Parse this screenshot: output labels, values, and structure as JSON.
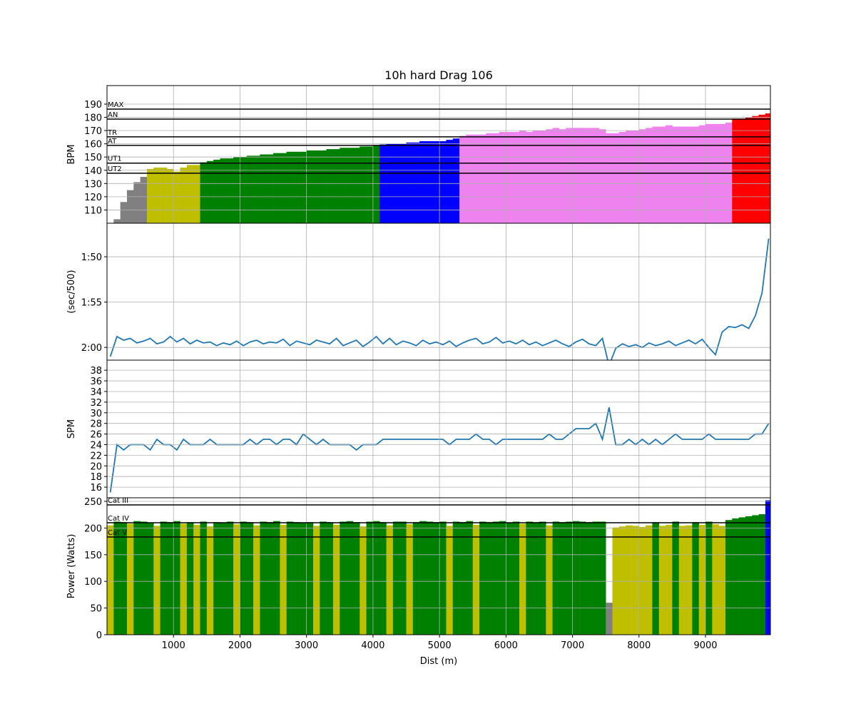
{
  "chart_data": [
    {
      "type": "bar",
      "title": "10h hard Drag 106",
      "ylabel": "BPM",
      "x": [
        50,
        150,
        250,
        350,
        450,
        550,
        650,
        750,
        850,
        950,
        1050,
        1150,
        1250,
        1350,
        1450,
        1550,
        1650,
        1750,
        1850,
        1950,
        2050,
        2150,
        2250,
        2350,
        2450,
        2550,
        2650,
        2750,
        2850,
        2950,
        3050,
        3150,
        3250,
        3350,
        3450,
        3550,
        3650,
        3750,
        3850,
        3950,
        4050,
        4150,
        4250,
        4350,
        4450,
        4550,
        4650,
        4750,
        4850,
        4950,
        5050,
        5150,
        5250,
        5350,
        5450,
        5550,
        5650,
        5750,
        5850,
        5950,
        6050,
        6150,
        6250,
        6350,
        6450,
        6550,
        6650,
        6750,
        6850,
        6950,
        7050,
        7150,
        7250,
        7350,
        7450,
        7550,
        7650,
        7750,
        7850,
        7950,
        8050,
        8150,
        8250,
        8350,
        8450,
        8550,
        8650,
        8750,
        8850,
        8950,
        9050,
        9150,
        9250,
        9350,
        9450,
        9550,
        9650,
        9750,
        9850,
        9950
      ],
      "values": [
        98,
        103,
        116,
        125,
        131,
        135,
        141,
        142,
        142,
        141,
        139,
        142,
        144,
        144,
        146,
        147,
        148,
        149,
        149,
        150,
        150,
        151,
        151,
        152,
        152,
        153,
        153,
        154,
        154,
        154,
        155,
        155,
        155,
        156,
        156,
        157,
        157,
        157,
        158,
        158,
        158.5,
        159.5,
        160,
        160,
        160,
        161,
        161,
        162,
        162,
        162,
        162,
        163,
        164,
        166,
        167,
        167,
        167,
        168,
        168,
        169,
        169,
        169,
        170,
        169,
        170,
        170,
        171,
        172,
        171,
        172,
        172,
        172,
        172,
        172,
        171,
        168,
        168,
        169,
        170,
        170,
        171,
        172,
        173,
        173,
        174,
        173,
        173,
        173,
        173,
        174,
        175,
        175,
        175,
        176,
        179,
        179,
        180,
        181,
        182,
        183
      ],
      "zones": [
        {
          "label": "UT2",
          "value": 137.8
        },
        {
          "label": "UT1",
          "value": 145.4
        },
        {
          "label": "AT",
          "value": 158.8
        },
        {
          "label": "TR",
          "value": 165.3
        },
        {
          "label": "AN",
          "value": 178.7
        },
        {
          "label": "MAX",
          "value": 186.2
        }
      ],
      "zone_colors": [
        "#808080",
        "#bfbf00",
        "#008000",
        "#0000ff",
        "#ee82ee",
        "#ff0000",
        "#ff0000"
      ],
      "ylim": [
        100,
        204
      ],
      "yticks": [
        110,
        120,
        130,
        140,
        150,
        160,
        170,
        180,
        190
      ],
      "xlim": [
        0,
        9976
      ],
      "xticks": [
        1000,
        2000,
        3000,
        4000,
        5000,
        6000,
        7000,
        8000,
        9000
      ],
      "grid": true
    },
    {
      "type": "line",
      "ylabel": "(sec/500)",
      "color": "#1f77b4",
      "x": [
        50,
        150,
        250,
        350,
        450,
        550,
        650,
        750,
        850,
        950,
        1050,
        1150,
        1250,
        1350,
        1450,
        1550,
        1650,
        1750,
        1850,
        1950,
        2050,
        2150,
        2250,
        2350,
        2450,
        2550,
        2650,
        2750,
        2850,
        2950,
        3050,
        3150,
        3250,
        3350,
        3450,
        3550,
        3650,
        3750,
        3850,
        3950,
        4050,
        4150,
        4250,
        4350,
        4450,
        4550,
        4650,
        4750,
        4850,
        4950,
        5050,
        5150,
        5250,
        5350,
        5450,
        5550,
        5650,
        5750,
        5850,
        5950,
        6050,
        6150,
        6250,
        6350,
        6450,
        6550,
        6650,
        6750,
        6850,
        6950,
        7050,
        7150,
        7250,
        7350,
        7450,
        7550,
        7650,
        7750,
        7850,
        7950,
        8050,
        8150,
        8250,
        8350,
        8450,
        8550,
        8650,
        8750,
        8850,
        8950,
        9050,
        9150,
        9250,
        9350,
        9450,
        9550,
        9650,
        9750,
        9850,
        9950
      ],
      "values": [
        121,
        118.8,
        119.2,
        119.0,
        119.5,
        119.3,
        119.0,
        119.6,
        119.4,
        118.8,
        119.4,
        119.0,
        119.6,
        119.2,
        119.5,
        119.4,
        119.8,
        119.5,
        119.7,
        119.3,
        119.8,
        119.4,
        119.2,
        119.6,
        119.4,
        119.5,
        119.1,
        119.8,
        119.3,
        119.5,
        119.7,
        119.2,
        119.4,
        119.6,
        119.0,
        119.8,
        119.5,
        119.2,
        119.9,
        119.4,
        118.8,
        119.6,
        119.0,
        119.7,
        119.3,
        119.5,
        119.8,
        119.2,
        119.6,
        119.4,
        119.7,
        119.3,
        119.9,
        119.5,
        119.2,
        119.0,
        119.6,
        119.4,
        118.9,
        119.5,
        119.3,
        119.6,
        119.2,
        119.7,
        119.4,
        119.8,
        119.5,
        119.2,
        119.6,
        119.9,
        119.4,
        119.1,
        119.6,
        119.8,
        119.0,
        122,
        120.1,
        119.6,
        119.9,
        119.7,
        120.0,
        119.5,
        119.8,
        119.6,
        119.3,
        119.8,
        119.5,
        119.2,
        119.6,
        119.1,
        120.0,
        120.8,
        118.3,
        117.7,
        117.8,
        117.5,
        117.9,
        116.5,
        114,
        108
      ],
      "ylim": [
        121.4,
        106.3
      ],
      "yticks": [
        {
          "value": 110,
          "label": "1:50"
        },
        {
          "value": 115,
          "label": "1:55"
        },
        {
          "value": 120,
          "label": "2:00"
        }
      ],
      "xlim": [
        0,
        9976
      ],
      "xticks": [
        1000,
        2000,
        3000,
        4000,
        5000,
        6000,
        7000,
        8000,
        9000
      ],
      "grid": true
    },
    {
      "type": "line",
      "ylabel": "SPM",
      "color": "#1f77b4",
      "x": [
        50,
        150,
        250,
        350,
        450,
        550,
        650,
        750,
        850,
        950,
        1050,
        1150,
        1250,
        1350,
        1450,
        1550,
        1650,
        1750,
        1850,
        1950,
        2050,
        2150,
        2250,
        2350,
        2450,
        2550,
        2650,
        2750,
        2850,
        2950,
        3050,
        3150,
        3250,
        3350,
        3450,
        3550,
        3650,
        3750,
        3850,
        3950,
        4050,
        4150,
        4250,
        4350,
        4450,
        4550,
        4650,
        4750,
        4850,
        4950,
        5050,
        5150,
        5250,
        5350,
        5450,
        5550,
        5650,
        5750,
        5850,
        5950,
        6050,
        6150,
        6250,
        6350,
        6450,
        6550,
        6650,
        6750,
        6850,
        6950,
        7050,
        7150,
        7250,
        7350,
        7450,
        7550,
        7650,
        7750,
        7850,
        7950,
        8050,
        8150,
        8250,
        8350,
        8450,
        8550,
        8650,
        8750,
        8850,
        8950,
        9050,
        9150,
        9250,
        9350,
        9450,
        9550,
        9650,
        9750,
        9850,
        9950
      ],
      "values": [
        15,
        24,
        23,
        24,
        24,
        24,
        23,
        25,
        24,
        24,
        23,
        25,
        24,
        24,
        24,
        25,
        24,
        24,
        24,
        24,
        24,
        25,
        24,
        25,
        25,
        24,
        25,
        25,
        24,
        26,
        25,
        24,
        25,
        24,
        24,
        24,
        24,
        23,
        24,
        24,
        24,
        25,
        25,
        25,
        25,
        25,
        25,
        25,
        25,
        25,
        25,
        24,
        25,
        25,
        25,
        26,
        25,
        25,
        24,
        25,
        25,
        25,
        25,
        25,
        25,
        25,
        26,
        25,
        25,
        26,
        27,
        27,
        27,
        28,
        25,
        31,
        24,
        24,
        25,
        24,
        25,
        24,
        25,
        24,
        25,
        26,
        25,
        25,
        25,
        25,
        26,
        25,
        25,
        25,
        25,
        25,
        25,
        26,
        26,
        28
      ],
      "ylim": [
        14,
        39.9
      ],
      "yticks": [
        16,
        18,
        20,
        22,
        24,
        26,
        28,
        30,
        32,
        34,
        36,
        38
      ],
      "xlim": [
        0,
        9976
      ],
      "xticks": [
        1000,
        2000,
        3000,
        4000,
        5000,
        6000,
        7000,
        8000,
        9000
      ],
      "grid": true
    },
    {
      "type": "bar",
      "ylabel": "Power (Watts)",
      "xlabel": "Dist (m)",
      "x": [
        50,
        150,
        250,
        350,
        450,
        550,
        650,
        750,
        850,
        950,
        1050,
        1150,
        1250,
        1350,
        1450,
        1550,
        1650,
        1750,
        1850,
        1950,
        2050,
        2150,
        2250,
        2350,
        2450,
        2550,
        2650,
        2750,
        2850,
        2950,
        3050,
        3150,
        3250,
        3350,
        3450,
        3550,
        3650,
        3750,
        3850,
        3950,
        4050,
        4150,
        4250,
        4350,
        4450,
        4550,
        4650,
        4750,
        4850,
        4950,
        5050,
        5150,
        5250,
        5350,
        5450,
        5550,
        5650,
        5750,
        5850,
        5950,
        6050,
        6150,
        6250,
        6350,
        6450,
        6550,
        6650,
        6750,
        6850,
        6950,
        7050,
        7150,
        7250,
        7350,
        7450,
        7550,
        7650,
        7750,
        7850,
        7950,
        8050,
        8150,
        8250,
        8350,
        8450,
        8550,
        8650,
        8750,
        8850,
        8950,
        9050,
        9150,
        9250,
        9350,
        9450,
        9550,
        9650,
        9750,
        9850,
        9950
      ],
      "values": [
        205,
        212,
        211,
        208,
        213,
        212,
        210,
        204,
        212,
        211,
        213,
        208,
        211,
        206,
        212,
        203,
        211,
        210,
        212,
        207,
        212,
        211,
        205,
        212,
        211,
        213,
        206,
        212,
        211,
        210,
        211,
        204,
        212,
        211,
        206,
        212,
        213,
        211,
        203,
        212,
        213,
        211,
        205,
        212,
        212,
        207,
        211,
        213,
        212,
        211,
        212,
        204,
        212,
        211,
        213,
        206,
        212,
        211,
        212,
        213,
        210,
        212,
        208,
        212,
        211,
        212,
        205,
        212,
        211,
        212,
        213,
        212,
        211,
        212,
        212,
        60,
        201,
        203,
        205,
        204,
        202,
        205,
        211,
        204,
        206,
        212,
        204,
        205,
        211,
        206,
        212,
        207,
        204,
        215,
        218,
        220,
        222,
        224,
        226,
        252
      ],
      "zones": [
        {
          "label": "Cat V",
          "value": 183.2
        },
        {
          "label": "Cat IV",
          "value": 209.9
        },
        {
          "label": "Cat III",
          "value": 243.3
        }
      ],
      "zone_colors": [
        "#808080",
        "#bfbf00",
        "#008000",
        "#0000ff"
      ],
      "ylim": [
        0,
        256.7
      ],
      "yticks": [
        0,
        50,
        100,
        150,
        200,
        250
      ],
      "xlim": [
        0,
        9976
      ],
      "xticks": [
        1000,
        2000,
        3000,
        4000,
        5000,
        6000,
        7000,
        8000,
        9000
      ],
      "grid": true
    }
  ]
}
